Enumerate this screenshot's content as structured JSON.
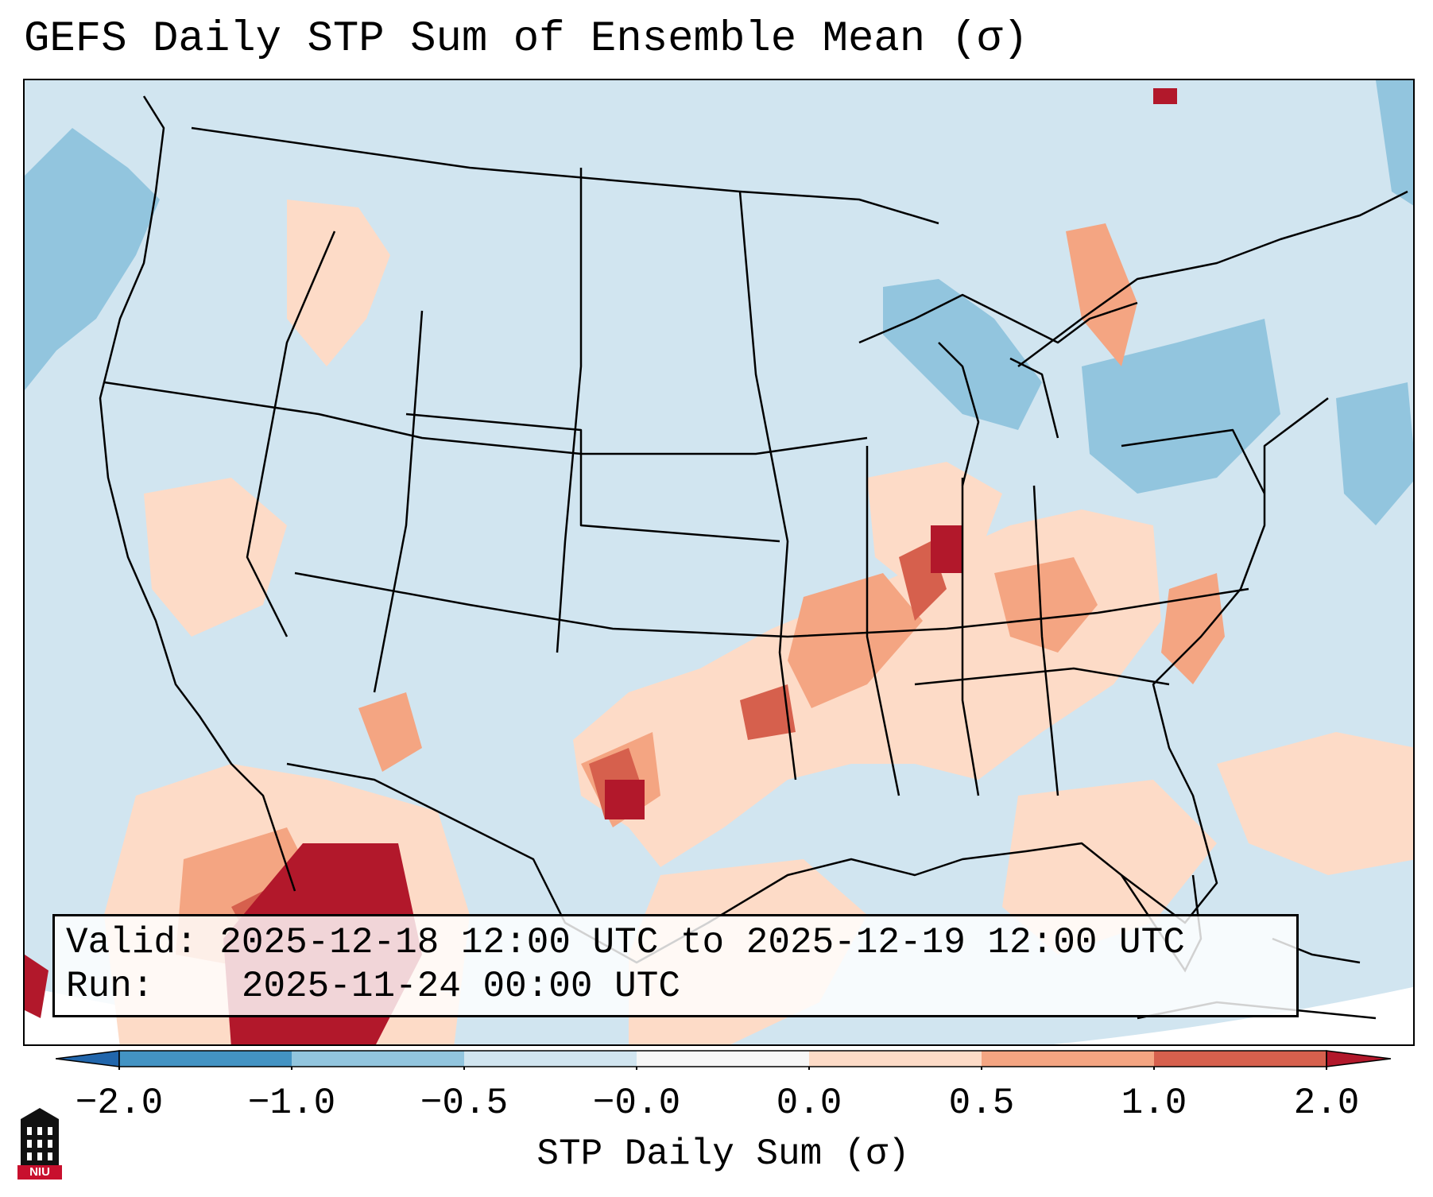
{
  "title": "GEFS Daily STP Sum of Ensemble Mean (σ)",
  "info": {
    "valid_label": "Valid:",
    "valid_value": "2025-12-18 12:00 UTC to 2025-12-19 12:00 UTC",
    "run_label": "Run:",
    "run_value": "2025-11-24 00:00 UTC"
  },
  "colorbar": {
    "label": "STP Daily Sum (σ)",
    "ticks": [
      "−2.0",
      "−1.0",
      "−0.5",
      "−0.0",
      "0.0",
      "0.5",
      "1.0",
      "2.0"
    ],
    "colors": [
      "#4393c3",
      "#92c5de",
      "#d1e5f0",
      "#f7f7f7",
      "#fddbc7",
      "#f4a582",
      "#d6604d",
      "#b2182b"
    ],
    "extend": "both"
  },
  "logo": {
    "text": "NIU"
  },
  "colors": {
    "ocean": "#d1e5f0",
    "neg_small": "#92c5de",
    "pos_light": "#fddbc7",
    "pos_mid": "#f4a582",
    "pos_high": "#d6604d",
    "pos_max": "#b2182b",
    "outline": "#000000"
  }
}
